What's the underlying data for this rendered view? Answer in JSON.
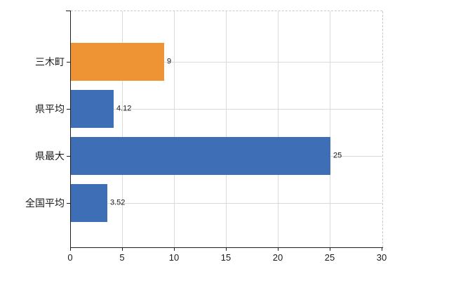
{
  "chart_data": {
    "type": "bar",
    "orientation": "horizontal",
    "categories": [
      "三木町",
      "県平均",
      "県最大",
      "全国平均"
    ],
    "values": [
      9,
      4.12,
      25,
      3.52
    ],
    "value_labels": [
      "9",
      "4.12",
      "25",
      "3.52"
    ],
    "bar_colors": [
      "#ee9435",
      "#3e6eb5",
      "#3e6eb5",
      "#3e6eb5"
    ],
    "xlim": [
      0,
      30
    ],
    "x_ticks": [
      0,
      5,
      10,
      15,
      20,
      25,
      30
    ],
    "x_tick_labels": [
      "0",
      "5",
      "10",
      "15",
      "20",
      "25",
      "30"
    ],
    "grid": true,
    "legend_position": "none",
    "title": "",
    "xlabel": "",
    "ylabel": ""
  },
  "colors": {
    "highlight_bar": "#ee9435",
    "default_bar": "#3e6eb5",
    "gridline": "#d8dcd4",
    "dashed_border": "#c9c9c9",
    "axis": "#1f1f1f",
    "text": "#1a1a1a",
    "background": "#ffffff"
  }
}
